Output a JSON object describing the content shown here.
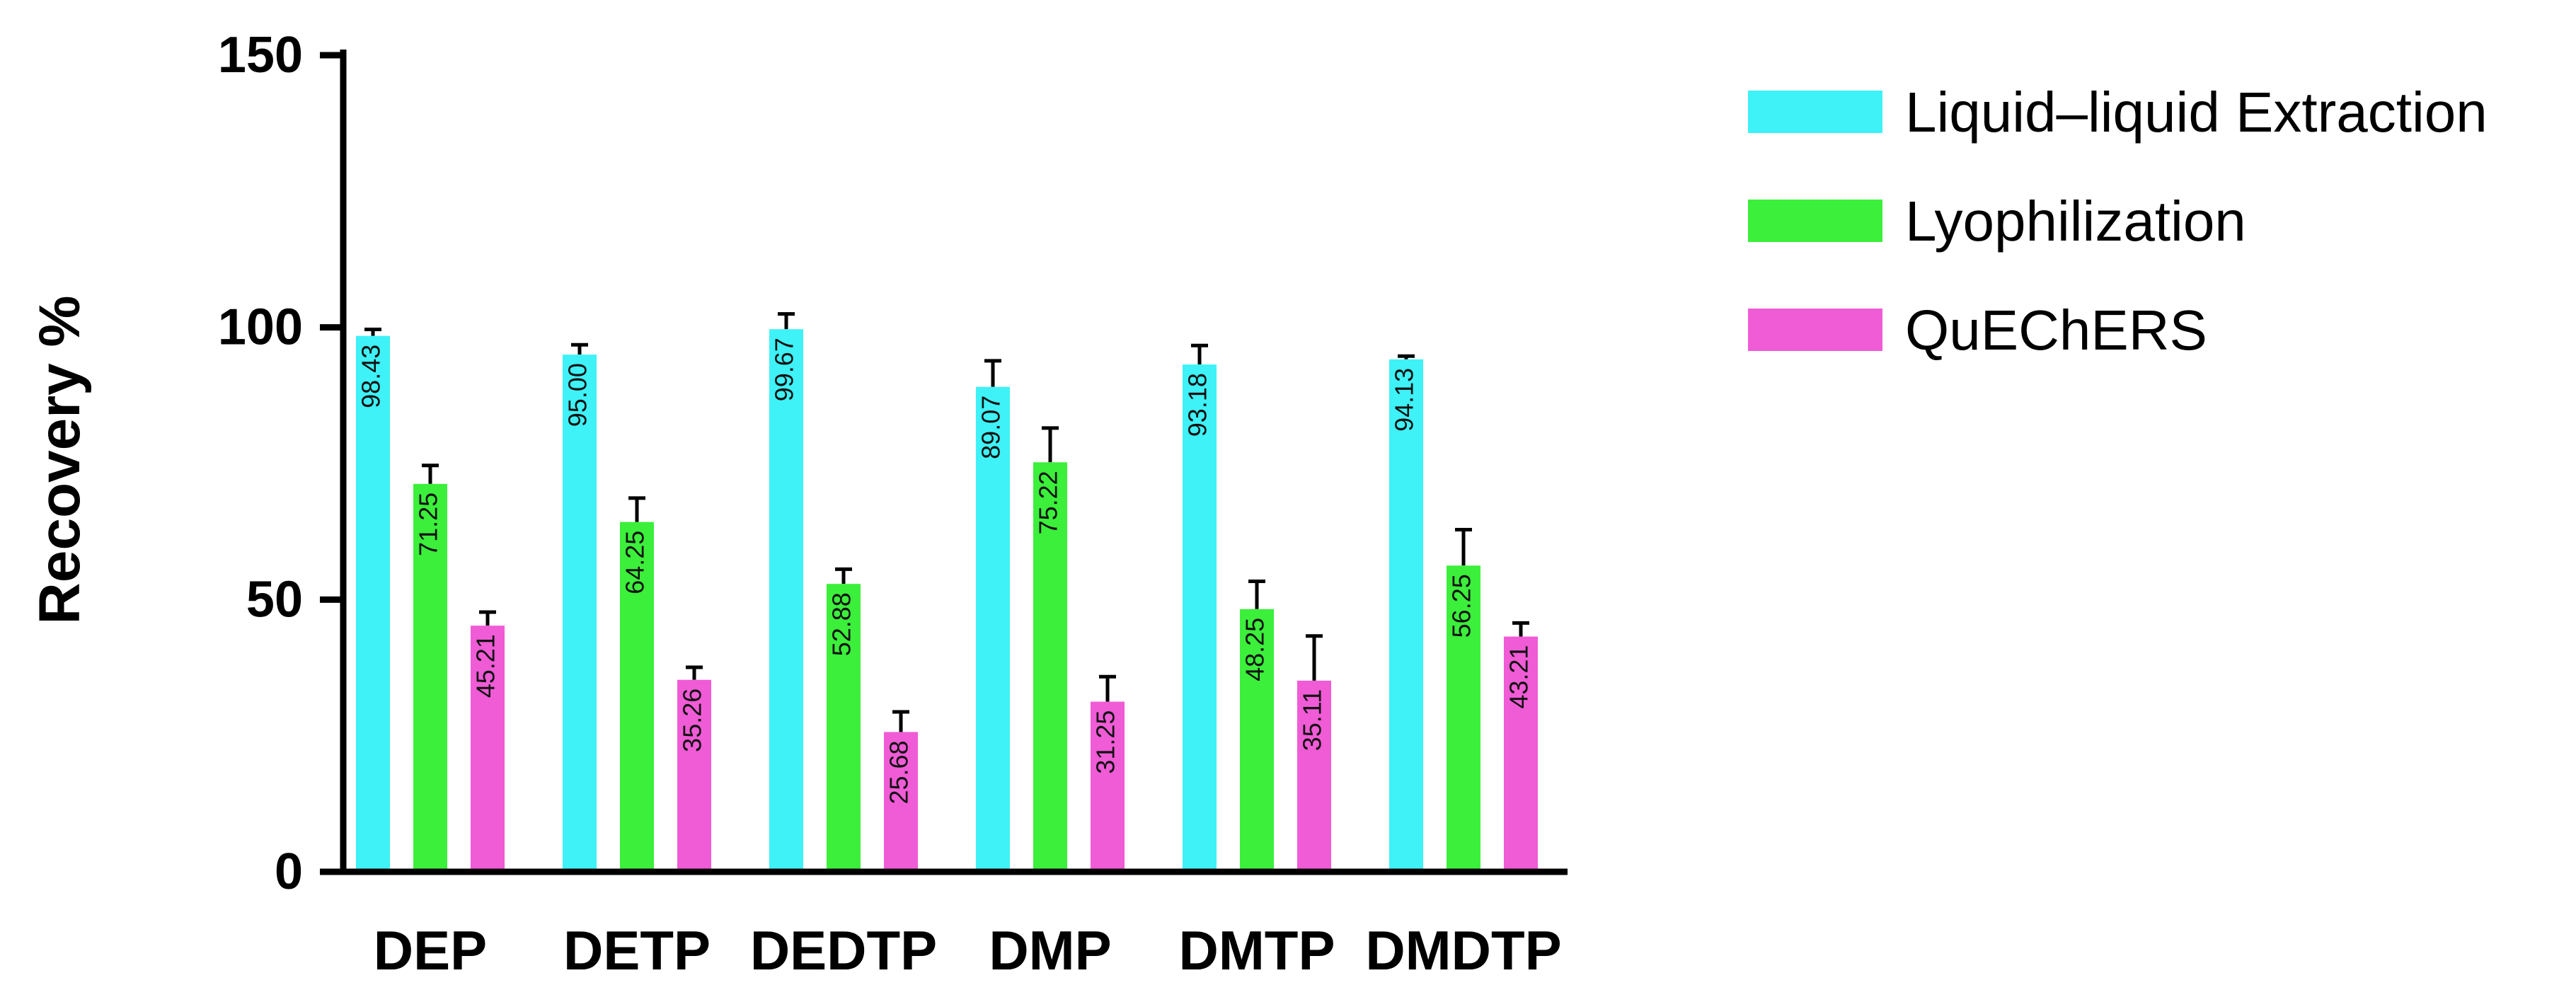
{
  "chart_data": {
    "type": "bar",
    "title": "",
    "xlabel": "",
    "ylabel": "Recovery %",
    "ylim": [
      0,
      150
    ],
    "yticks": [
      0,
      50,
      100,
      150
    ],
    "grid": false,
    "legend_position": "top-right",
    "categories": [
      "DEP",
      "DETP",
      "DEDTP",
      "DMP",
      "DMTP",
      "DMDTP"
    ],
    "series": [
      {
        "name": "Liquid–liquid Extraction",
        "color": "#3ef2f7",
        "values": [
          98.43,
          95.0,
          99.67,
          89.07,
          93.18,
          94.13
        ],
        "labels": [
          "98.43",
          "95.00",
          "99.67",
          "89.07",
          "93.18",
          "94.13"
        ],
        "errors": [
          1.2,
          1.8,
          2.8,
          4.8,
          3.5,
          0.6
        ]
      },
      {
        "name": "Lyophilization",
        "color": "#3bef3b",
        "values": [
          71.25,
          64.25,
          52.88,
          75.22,
          48.25,
          56.25
        ],
        "labels": [
          "71.25",
          "64.25",
          "52.88",
          "75.22",
          "48.25",
          "56.25"
        ],
        "errors": [
          3.4,
          4.4,
          2.7,
          6.3,
          5.1,
          6.6
        ]
      },
      {
        "name": "QuEChERS",
        "color": "#f05bd6",
        "values": [
          45.21,
          35.26,
          25.68,
          31.25,
          35.11,
          43.21
        ],
        "labels": [
          "45.21",
          "35.26",
          "25.68",
          "31.25",
          "35.11",
          "43.21"
        ],
        "errors": [
          2.5,
          2.3,
          3.7,
          4.6,
          8.2,
          2.5
        ]
      }
    ]
  }
}
